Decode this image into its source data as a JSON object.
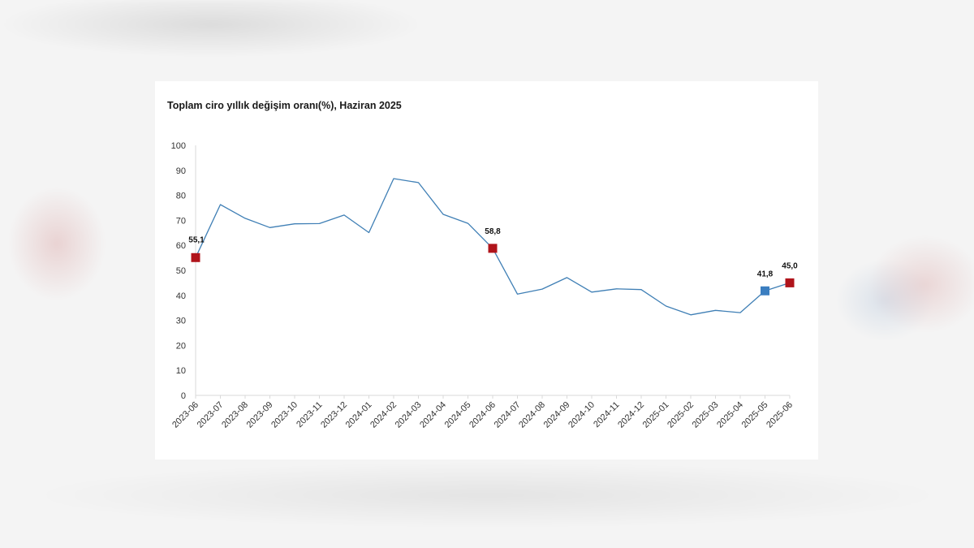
{
  "chart_data": {
    "type": "line",
    "title": "Toplam ciro yıllık değişim oranı(%), Haziran 2025",
    "xlabel": "",
    "ylabel": "",
    "ylim": [
      0,
      100
    ],
    "y_ticks": [
      0,
      10,
      20,
      30,
      40,
      50,
      60,
      70,
      80,
      90,
      100
    ],
    "grid": false,
    "legend": "none",
    "categories": [
      "2023-06",
      "2023-07",
      "2023-08",
      "2023-09",
      "2023-10",
      "2023-11",
      "2023-12",
      "2024-01",
      "2024-02",
      "2024-03",
      "2024-04",
      "2024-05",
      "2024-06",
      "2024-07",
      "2024-08",
      "2024-09",
      "2024-10",
      "2024-11",
      "2024-12",
      "2025-01",
      "2025-02",
      "2025-03",
      "2025-04",
      "2025-05",
      "2025-06"
    ],
    "series": [
      {
        "values": [
          55.1,
          76.3,
          70.8,
          67.1,
          68.6,
          68.7,
          72.1,
          65.1,
          86.7,
          85.1,
          72.4,
          68.8,
          58.8,
          40.5,
          42.5,
          47.1,
          41.3,
          42.6,
          42.3,
          35.7,
          32.2,
          34.0,
          33.1,
          41.8,
          45.0
        ],
        "color": "#3f7fb5"
      }
    ],
    "highlighted_points": [
      {
        "index": 0,
        "label": "55,1",
        "color": "#b0141b"
      },
      {
        "index": 12,
        "label": "58,8",
        "color": "#b0141b"
      },
      {
        "index": 23,
        "label": "41,8",
        "color": "#3b7ec0"
      },
      {
        "index": 24,
        "label": "45,0",
        "color": "#b0141b"
      }
    ]
  }
}
